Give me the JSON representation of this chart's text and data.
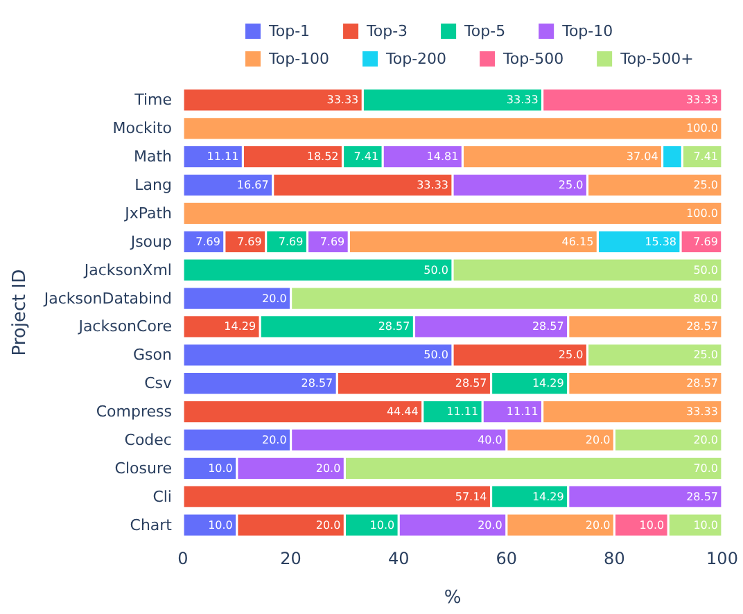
{
  "chart_data": {
    "type": "bar",
    "orientation": "horizontal",
    "stacked": true,
    "xlabel": "%",
    "ylabel": "Project ID",
    "categories": [
      "Time",
      "Mockito",
      "Math",
      "Lang",
      "JxPath",
      "Jsoup",
      "JacksonXml",
      "JacksonDatabind",
      "JacksonCore",
      "Gson",
      "Csv",
      "Compress",
      "Codec",
      "Closure",
      "Cli",
      "Chart"
    ],
    "series": [
      {
        "name": "Top-1",
        "color": "#636efa",
        "values": [
          null,
          null,
          11.11,
          16.67,
          null,
          7.69,
          null,
          20.0,
          null,
          50.0,
          28.57,
          null,
          20.0,
          10.0,
          null,
          10.0
        ],
        "value_labels": [
          null,
          null,
          "11.11",
          "16.67",
          null,
          "7.69",
          null,
          "20.0",
          null,
          "50.0",
          "28.57",
          null,
          "20.0",
          "10.0",
          null,
          "10.0"
        ]
      },
      {
        "name": "Top-3",
        "color": "#ef553b",
        "values": [
          33.33,
          null,
          18.52,
          33.33,
          null,
          7.69,
          null,
          null,
          14.29,
          25.0,
          28.57,
          44.44,
          null,
          null,
          57.14,
          20.0
        ],
        "value_labels": [
          "33.33",
          null,
          "18.52",
          "33.33",
          null,
          "7.69",
          null,
          null,
          "14.29",
          "25.0",
          "28.57",
          "44.44",
          null,
          null,
          "57.14",
          "20.0"
        ]
      },
      {
        "name": "Top-5",
        "color": "#00cc96",
        "values": [
          33.33,
          null,
          7.41,
          null,
          null,
          7.69,
          50.0,
          null,
          28.57,
          null,
          14.29,
          11.11,
          null,
          null,
          14.29,
          10.0
        ],
        "value_labels": [
          "33.33",
          null,
          "7.41",
          null,
          null,
          "7.69",
          "50.0",
          null,
          "28.57",
          null,
          "14.29",
          "11.11",
          null,
          null,
          "14.29",
          "10.0"
        ]
      },
      {
        "name": "Top-10",
        "color": "#ab63fa",
        "values": [
          null,
          null,
          14.81,
          25.0,
          null,
          7.69,
          null,
          null,
          28.57,
          null,
          null,
          11.11,
          40.0,
          20.0,
          28.57,
          20.0
        ],
        "value_labels": [
          null,
          null,
          "14.81",
          "25.0",
          null,
          "7.69",
          null,
          null,
          "28.57",
          null,
          null,
          "11.11",
          "40.0",
          "20.0",
          "28.57",
          "20.0"
        ]
      },
      {
        "name": "Top-100",
        "color": "#ffa15a",
        "values": [
          null,
          100.0,
          37.04,
          25.0,
          100.0,
          46.15,
          null,
          null,
          28.57,
          null,
          28.57,
          33.33,
          20.0,
          null,
          null,
          20.0
        ],
        "value_labels": [
          null,
          "100.0",
          "37.04",
          "25.0",
          "100.0",
          "46.15",
          null,
          null,
          "28.57",
          null,
          "28.57",
          "33.33",
          "20.0",
          null,
          null,
          "20.0"
        ]
      },
      {
        "name": "Top-200",
        "color": "#19d3f3",
        "values": [
          null,
          null,
          3.7,
          null,
          null,
          15.38,
          null,
          null,
          null,
          null,
          null,
          null,
          null,
          null,
          null,
          null
        ],
        "value_labels": [
          null,
          null,
          null,
          null,
          null,
          "15.38",
          null,
          null,
          null,
          null,
          null,
          null,
          null,
          null,
          null,
          null
        ]
      },
      {
        "name": "Top-500",
        "color": "#ff6692",
        "values": [
          33.33,
          null,
          null,
          null,
          null,
          7.69,
          null,
          null,
          null,
          null,
          null,
          null,
          null,
          null,
          null,
          10.0
        ],
        "value_labels": [
          "33.33",
          null,
          null,
          null,
          null,
          "7.69",
          null,
          null,
          null,
          null,
          null,
          null,
          null,
          null,
          null,
          "10.0"
        ]
      },
      {
        "name": "Top-500+",
        "color": "#b6e880",
        "values": [
          null,
          null,
          7.41,
          null,
          null,
          null,
          50.0,
          80.0,
          null,
          25.0,
          null,
          null,
          20.0,
          70.0,
          null,
          10.0
        ],
        "value_labels": [
          null,
          null,
          "7.41",
          null,
          null,
          null,
          "50.0",
          "80.0",
          null,
          "25.0",
          null,
          null,
          "20.0",
          "70.0",
          null,
          "10.0"
        ]
      }
    ],
    "xlim": [
      0,
      100
    ],
    "xticks": [
      0,
      20,
      40,
      60,
      80,
      100
    ],
    "legend": "top"
  }
}
